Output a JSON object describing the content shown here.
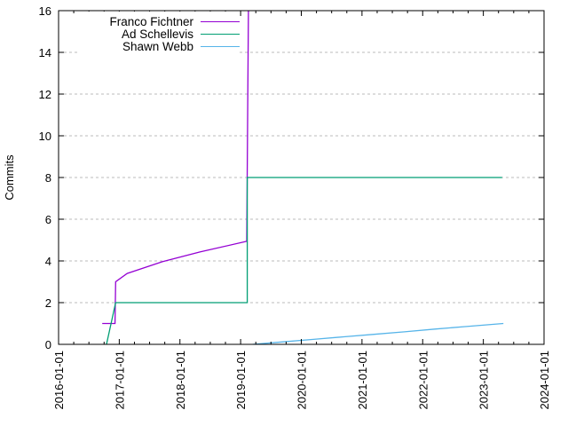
{
  "figure": {
    "background": "#ffffff",
    "axis_color": "#000000",
    "grid_color": "#bbbbbb",
    "text_color": "#000000"
  },
  "legend": {
    "items": [
      {
        "label": "Franco Fichtner",
        "color": "#9400d3"
      },
      {
        "label": "Ad Schellevis",
        "color": "#009e73"
      },
      {
        "label": "Shawn Webb",
        "color": "#56b4e9"
      }
    ]
  },
  "axes": {
    "x": {
      "tick_values": [
        2016,
        2017,
        2018,
        2019,
        2020,
        2021,
        2022,
        2023,
        2024
      ],
      "tick_labels": [
        "2016-01-01",
        "2017-01-01",
        "2018-01-01",
        "2019-01-01",
        "2020-01-01",
        "2021-01-01",
        "2022-01-01",
        "2023-01-01",
        "2024-01-01"
      ],
      "minor_ticks_per_interval": 3,
      "range": [
        2016,
        2024
      ]
    },
    "y": {
      "label": "Commits",
      "tick_values": [
        0,
        2,
        4,
        6,
        8,
        10,
        12,
        14,
        16
      ],
      "tick_labels": [
        "0",
        "2",
        "4",
        "6",
        "8",
        "10",
        "12",
        "14",
        "16"
      ],
      "range": [
        0,
        16
      ],
      "grid": true
    }
  },
  "chart_data": {
    "type": "line",
    "title": "",
    "xlabel": "",
    "ylabel": "Commits",
    "xlim": [
      "2016-01-01",
      "2024-01-01"
    ],
    "ylim": [
      0,
      16
    ],
    "grid": "horizontal-dashed",
    "legend_position": "top-left-inside-opaque",
    "series": [
      {
        "name": "Franco Fichtner",
        "color": "#9400d3",
        "points": [
          [
            2016.72,
            1
          ],
          [
            2016.93,
            1
          ],
          [
            2016.94,
            3
          ],
          [
            2017.13,
            3.4
          ],
          [
            2017.71,
            3.96
          ],
          [
            2018.33,
            4.43
          ],
          [
            2019.1,
            4.94
          ],
          [
            2019.13,
            16.5
          ]
        ],
        "note_clipped_at_top": true
      },
      {
        "name": "Ad Schellevis",
        "color": "#009e73",
        "points": [
          [
            2016.79,
            0
          ],
          [
            2016.94,
            2
          ],
          [
            2019.11,
            2
          ],
          [
            2019.11,
            8
          ],
          [
            2023.31,
            8
          ]
        ]
      },
      {
        "name": "Shawn Webb",
        "color": "#56b4e9",
        "points": [
          [
            2019.2,
            0
          ],
          [
            2019.7,
            0.12
          ],
          [
            2020.2,
            0.24
          ],
          [
            2020.7,
            0.36
          ],
          [
            2021.2,
            0.48
          ],
          [
            2021.7,
            0.6
          ],
          [
            2022.2,
            0.73
          ],
          [
            2022.7,
            0.85
          ],
          [
            2023.33,
            1
          ]
        ]
      }
    ]
  }
}
